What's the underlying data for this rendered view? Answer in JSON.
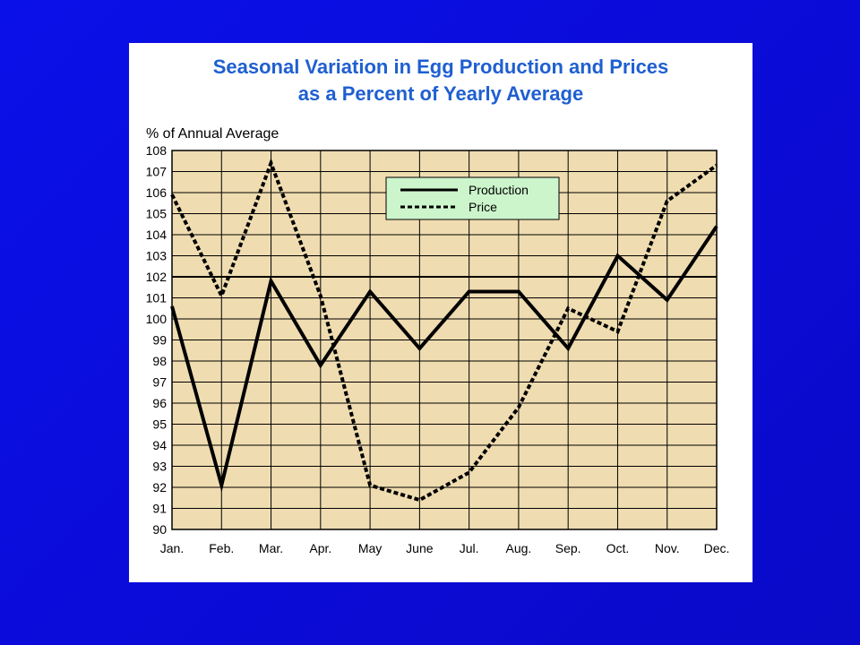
{
  "chart_data": {
    "type": "line",
    "title_lines": [
      "Seasonal Variation in Egg Production and Prices",
      "as a Percent of Yearly Average"
    ],
    "ylabel": "% of Annual Average",
    "xlabel": "",
    "categories": [
      "Jan.",
      "Feb.",
      "Mar.",
      "Apr.",
      "May",
      "June",
      "Jul.",
      "Aug.",
      "Sep.",
      "Oct.",
      "Nov.",
      "Dec."
    ],
    "ylim": [
      90,
      108
    ],
    "yticks": [
      90,
      91,
      92,
      93,
      94,
      95,
      96,
      97,
      98,
      99,
      100,
      101,
      102,
      103,
      104,
      105,
      106,
      107,
      108
    ],
    "series": [
      {
        "name": "Production",
        "style": "solid",
        "values": [
          100.6,
          92.1,
          101.8,
          97.8,
          101.3,
          98.6,
          101.3,
          101.3,
          98.6,
          103.0,
          100.9,
          104.4
        ]
      },
      {
        "name": "Price",
        "style": "dotted",
        "values": [
          105.9,
          101.1,
          107.4,
          101.1,
          92.1,
          91.4,
          92.7,
          95.8,
          100.5,
          99.4,
          105.6,
          107.3
        ]
      }
    ],
    "grid": true,
    "legend_position": "top-center",
    "colors": {
      "plot_background": "#efdcb0",
      "grid": "#000000",
      "line": "#000000",
      "legend_background": "#ccf5cc",
      "title": "#1f5fd0"
    }
  }
}
